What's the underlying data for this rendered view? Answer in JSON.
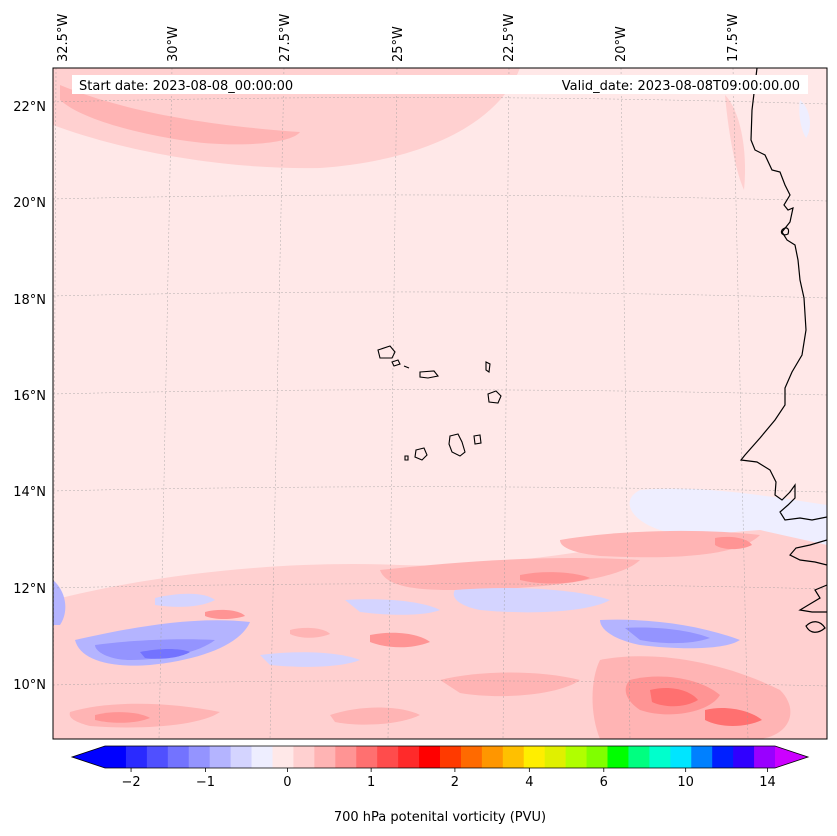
{
  "header": {
    "start_date": "Start date: 2023-08-08_00:00:00",
    "valid_date": "Valid_date: 2023-08-08T09:00:00.00"
  },
  "axes": {
    "lon_labels": [
      "32.5°W",
      "30°W",
      "27.5°W",
      "25°W",
      "22.5°W",
      "20°W",
      "17.5°W"
    ],
    "lat_labels": [
      "22°N",
      "20°N",
      "18°N",
      "16°N",
      "14°N",
      "12°N",
      "10°N"
    ]
  },
  "colorbar": {
    "label": "700 hPa potenital vorticity (PVU)",
    "tick_labels": [
      "−2",
      "−1",
      "0",
      "1",
      "2",
      "4",
      "6",
      "10",
      "14"
    ],
    "colors": [
      "#0000ff",
      "#2a2aff",
      "#5050ff",
      "#7373ff",
      "#9494ff",
      "#b4b4ff",
      "#d4d4ff",
      "#eeeeff",
      "#ffe8e8",
      "#ffd0d0",
      "#ffb4b4",
      "#ff9494",
      "#ff7070",
      "#ff4c4c",
      "#ff2a2a",
      "#ff0000",
      "#ff3a00",
      "#ff6a00",
      "#ff9600",
      "#ffc000",
      "#ffee00",
      "#e0f000",
      "#b0ff00",
      "#80ff00",
      "#00ff00",
      "#00ff80",
      "#00ffcc",
      "#00e5ff",
      "#0080ff",
      "#0020ff",
      "#3000ff",
      "#9900ff"
    ],
    "under_color": "#0000ff",
    "over_color": "#cc00ff"
  }
}
